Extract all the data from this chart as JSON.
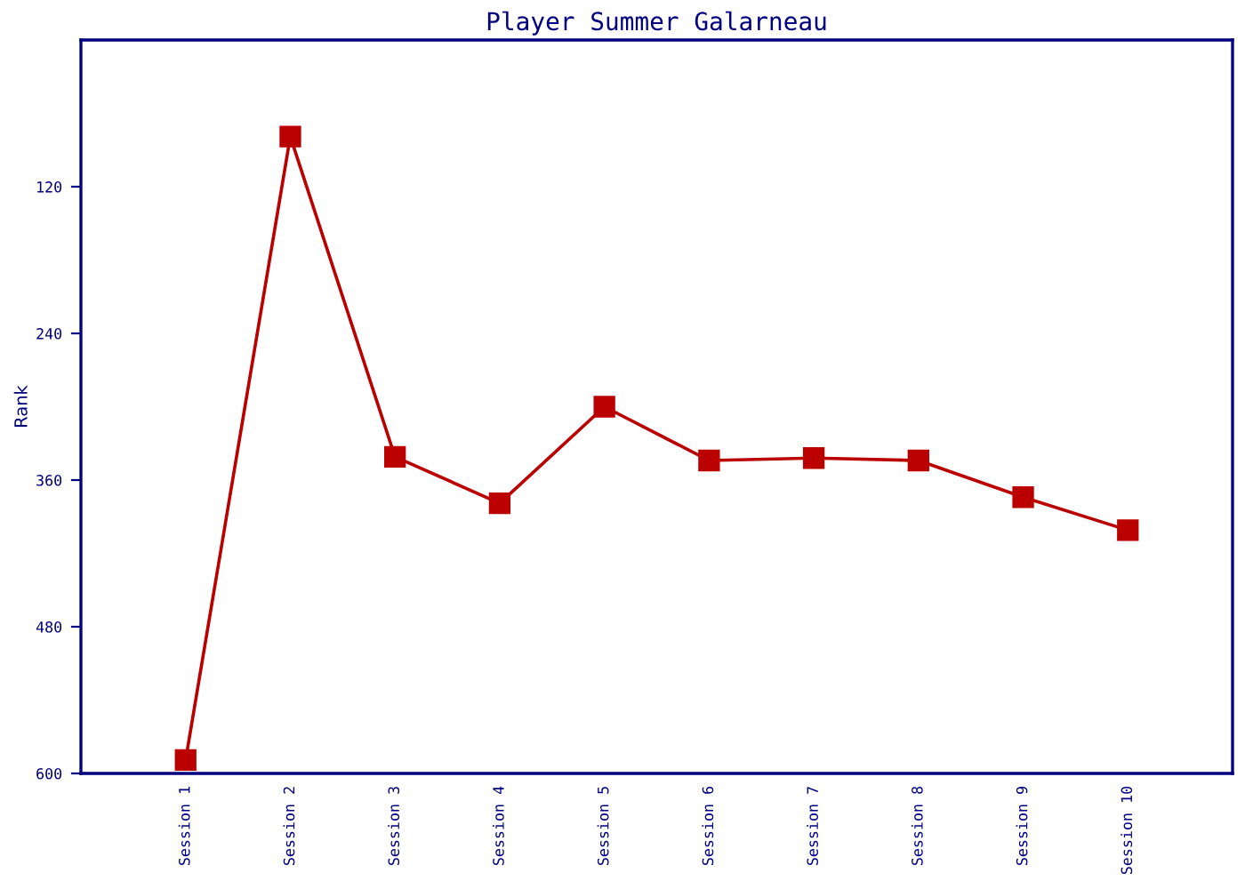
{
  "chart_data": {
    "type": "line",
    "title": "Player Summer Galarneau",
    "ylabel": "Rank",
    "categories": [
      "Session 1",
      "Session 2",
      "Session 3",
      "Session 4",
      "Session 5",
      "Session 6",
      "Session 7",
      "Session 8",
      "Session 9",
      "Session 10"
    ],
    "series": [
      {
        "color": "#bb0000",
        "values": [
          589,
          79,
          341,
          379,
          300,
          344,
          342,
          344,
          374,
          401
        ]
      }
    ],
    "ylim": [
      600,
      0
    ],
    "yticks": [
      120,
      240,
      360,
      480,
      600
    ],
    "marker": "square",
    "line_style": "solid",
    "grid": false,
    "legend": false
  }
}
